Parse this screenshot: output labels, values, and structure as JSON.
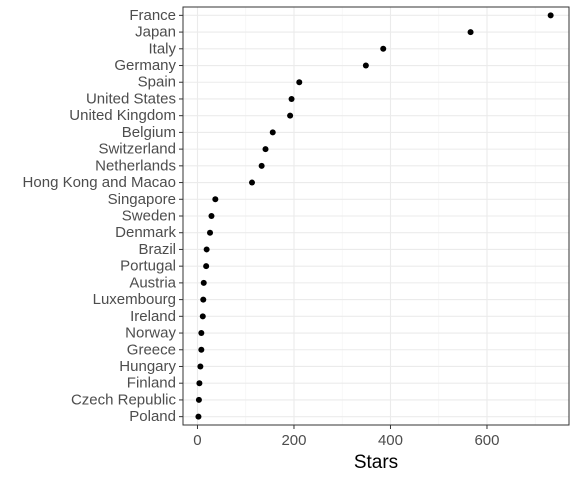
{
  "chart_data": {
    "type": "scatter",
    "title": "",
    "xlabel": "Stars",
    "ylabel": "",
    "xlim": [
      -30,
      770
    ],
    "x_ticks": [
      0,
      200,
      400,
      600
    ],
    "grid": true,
    "categories": [
      "France",
      "Japan",
      "Italy",
      "Germany",
      "Spain",
      "United States",
      "United Kingdom",
      "Belgium",
      "Switzerland",
      "Netherlands",
      "Hong Kong and Macao",
      "Singapore",
      "Sweden",
      "Denmark",
      "Brazil",
      "Portugal",
      "Austria",
      "Luxembourg",
      "Ireland",
      "Norway",
      "Greece",
      "Hungary",
      "Finland",
      "Czech Republic",
      "Poland"
    ],
    "values": [
      732,
      566,
      385,
      349,
      211,
      195,
      192,
      156,
      141,
      133,
      113,
      37,
      29,
      26,
      19,
      18,
      13,
      12,
      11,
      8,
      8,
      6,
      4,
      3,
      2
    ],
    "colors": {
      "panel_background": "#ffffff",
      "panel_border": "#333333",
      "grid_major": "#ebebeb",
      "grid_minor": "#f5f5f5",
      "point": "#000000"
    }
  }
}
